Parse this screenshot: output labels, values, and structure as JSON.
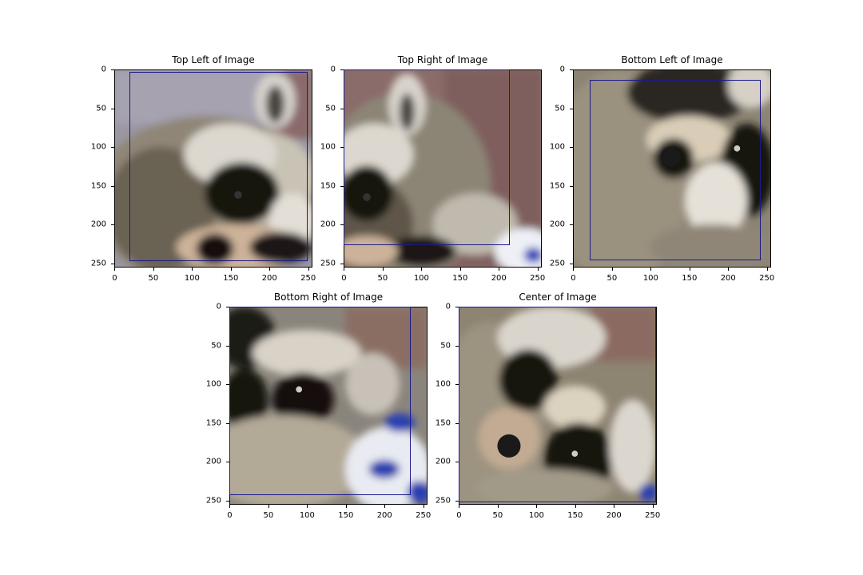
{
  "chart_data": [
    {
      "type": "image",
      "title": "Top Left of Image",
      "xticks": [
        0,
        50,
        100,
        150,
        200,
        250
      ],
      "yticks": [
        0,
        50,
        100,
        150,
        200,
        250
      ],
      "xlim": [
        0,
        256
      ],
      "ylim": [
        256,
        0
      ],
      "box": {
        "x0": 20,
        "y0": 3,
        "x1": 250,
        "y1": 248,
        "color": "#1a1a8c"
      }
    },
    {
      "type": "image",
      "title": "Top Right of Image",
      "xticks": [
        0,
        50,
        100,
        150,
        200,
        250
      ],
      "yticks": [
        0,
        50,
        100,
        150,
        200,
        250
      ],
      "xlim": [
        0,
        256
      ],
      "ylim": [
        256,
        0
      ],
      "box": {
        "x0": 0,
        "y0": 0,
        "x1": 215,
        "y1": 227,
        "color": "#1a1a8c"
      }
    },
    {
      "type": "image",
      "title": "Bottom Left of Image",
      "xticks": [
        0,
        50,
        100,
        150,
        200,
        250
      ],
      "yticks": [
        0,
        50,
        100,
        150,
        200,
        250
      ],
      "xlim": [
        0,
        256
      ],
      "ylim": [
        256,
        0
      ],
      "box": {
        "x0": 22,
        "y0": 13,
        "x1": 243,
        "y1": 247,
        "color": "#1a1a8c"
      }
    },
    {
      "type": "image",
      "title": "Bottom Right of Image",
      "xticks": [
        0,
        50,
        100,
        150,
        200,
        250
      ],
      "yticks": [
        0,
        50,
        100,
        150,
        200,
        250
      ],
      "xlim": [
        0,
        256
      ],
      "ylim": [
        256,
        0
      ],
      "box": {
        "x0": 0,
        "y0": 0,
        "x1": 234,
        "y1": 244,
        "color": "#1a1a8c"
      }
    },
    {
      "type": "image",
      "title": "Center of Image",
      "xticks": [
        0,
        50,
        100,
        150,
        200,
        250
      ],
      "yticks": [
        0,
        50,
        100,
        150,
        200,
        250
      ],
      "xlim": [
        0,
        256
      ],
      "ylim": [
        256,
        0
      ],
      "box": {
        "x0": 0,
        "y0": 0,
        "x1": 255,
        "y1": 253,
        "color": "#1a1a8c"
      }
    }
  ]
}
